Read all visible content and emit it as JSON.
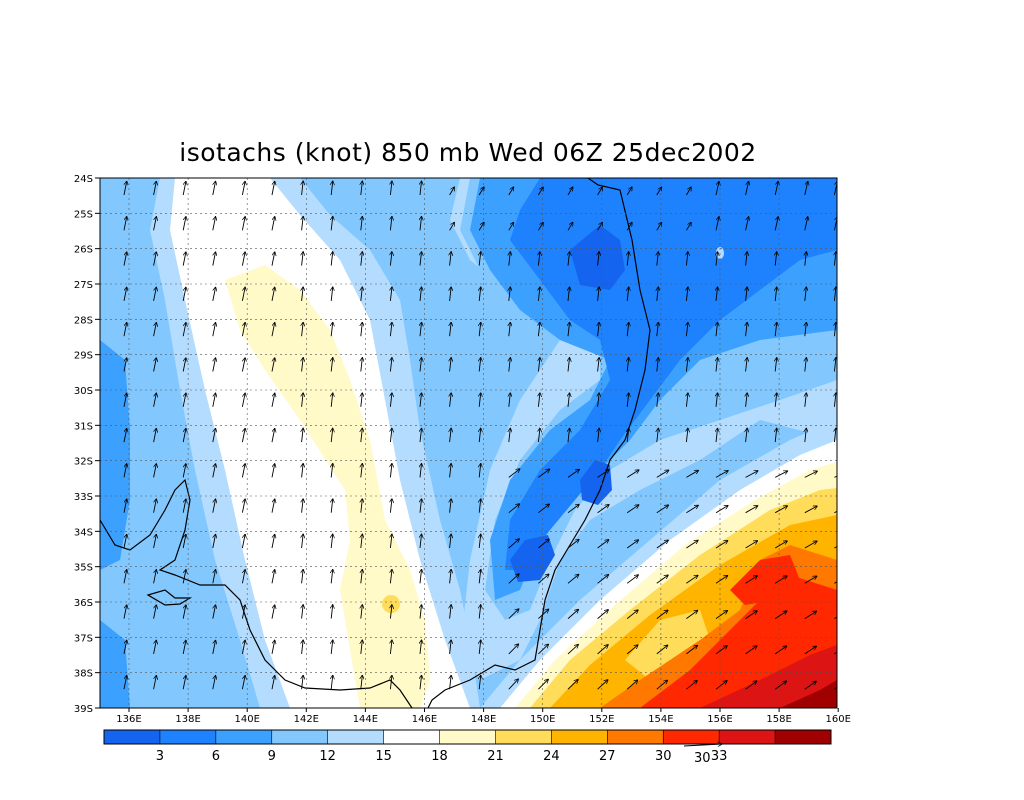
{
  "title": "isotachs (knot) 850 mb Wed 06Z 25dec2002",
  "lat_labels": [
    "24S",
    "25S",
    "26S",
    "27S",
    "28S",
    "29S",
    "30S",
    "31S",
    "32S",
    "33S",
    "34S",
    "35S",
    "36S",
    "37S",
    "38S",
    "39S"
  ],
  "lon_labels": [
    "136E",
    "138E",
    "140E",
    "142E",
    "144E",
    "146E",
    "148E",
    "150E",
    "152E",
    "154E",
    "156E",
    "158E",
    "160E"
  ],
  "colorbar": {
    "colors": [
      "#1464f0",
      "#1e82ff",
      "#3ca0ff",
      "#82c8ff",
      "#b4dcff",
      "#ffffff",
      "#fffac8",
      "#ffdc5a",
      "#ffb400",
      "#ff7800",
      "#ff2800",
      "#dc1414",
      "#a00000"
    ],
    "labels": [
      "3",
      "6",
      "9",
      "12",
      "15",
      "18",
      "21",
      "24",
      "27",
      "30",
      "33"
    ]
  },
  "reference_vector": {
    "label": "30"
  }
}
